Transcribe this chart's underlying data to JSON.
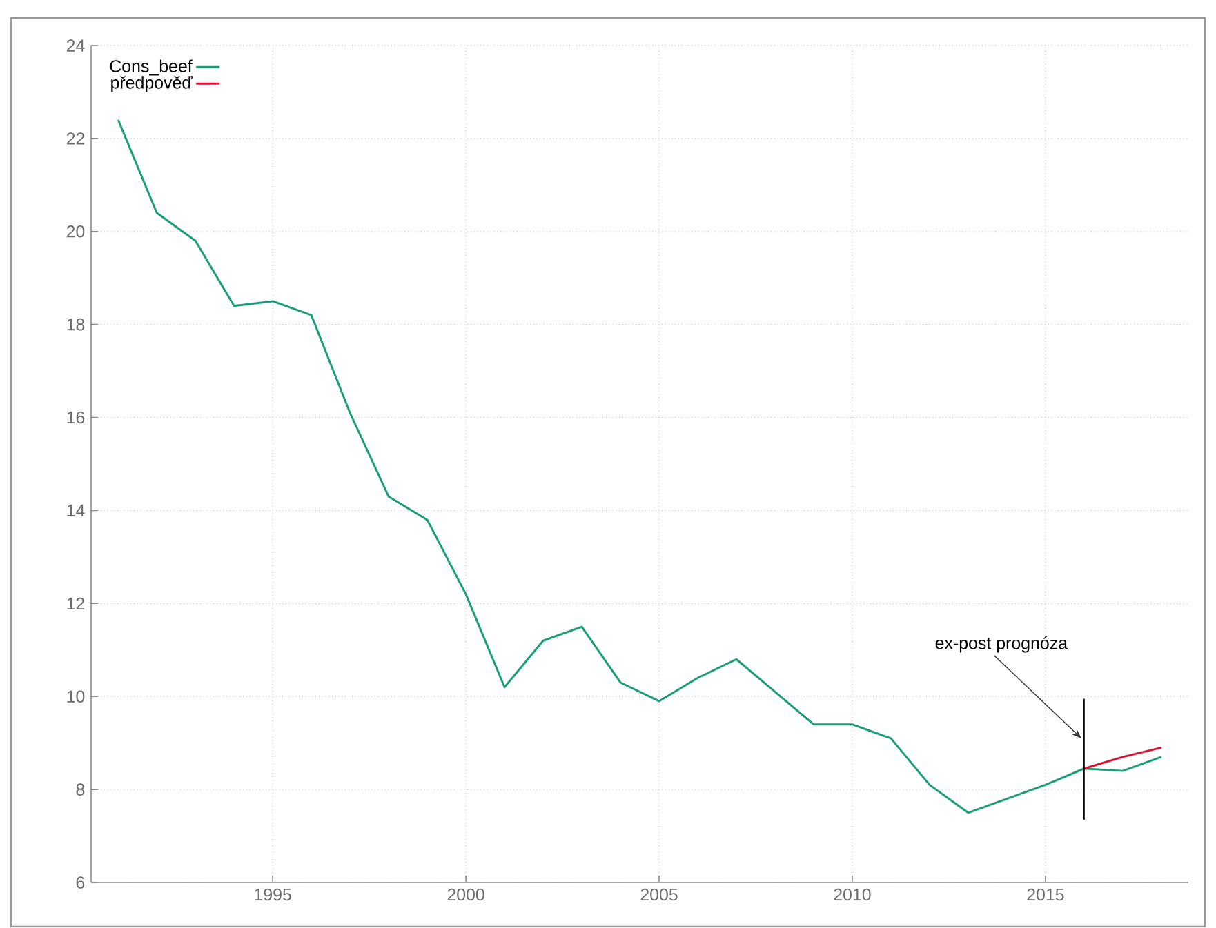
{
  "chart_data": {
    "type": "line",
    "x": [
      1991,
      1992,
      1993,
      1994,
      1995,
      1996,
      1997,
      1998,
      1999,
      2000,
      2001,
      2002,
      2003,
      2004,
      2005,
      2006,
      2007,
      2008,
      2009,
      2010,
      2011,
      2012,
      2013,
      2014,
      2015,
      2016,
      2017,
      2018
    ],
    "series": [
      {
        "name": "Cons_beef",
        "color": "#1a9e77",
        "values": [
          22.4,
          20.4,
          19.8,
          18.4,
          18.5,
          18.2,
          16.1,
          14.3,
          13.8,
          12.2,
          10.2,
          11.2,
          11.5,
          10.3,
          9.9,
          10.4,
          10.8,
          10.1,
          9.4,
          9.4,
          9.1,
          8.1,
          7.5,
          7.8,
          8.1,
          8.45,
          8.4,
          8.7
        ]
      },
      {
        "name": "předpověď",
        "color": "#e0102f",
        "x": [
          2016,
          2017,
          2018
        ],
        "values": [
          8.45,
          8.7,
          8.9
        ]
      },
      {
        "color": "#000000",
        "x": [
          2016,
          2016
        ],
        "values": [
          7.35,
          9.95
        ]
      }
    ],
    "xlim": [
      1990.3,
      2018.7
    ],
    "ylim": [
      6,
      24
    ],
    "xticks": [
      1995,
      2000,
      2005,
      2010,
      2015
    ],
    "yticks": [
      6,
      8,
      10,
      12,
      14,
      16,
      18,
      20,
      22,
      24
    ],
    "grid": true,
    "legend": "top left",
    "line_style": "solid",
    "annotations": [
      {
        "text": "ex-post prognóza",
        "x": 2016,
        "y": 9.1
      }
    ]
  }
}
